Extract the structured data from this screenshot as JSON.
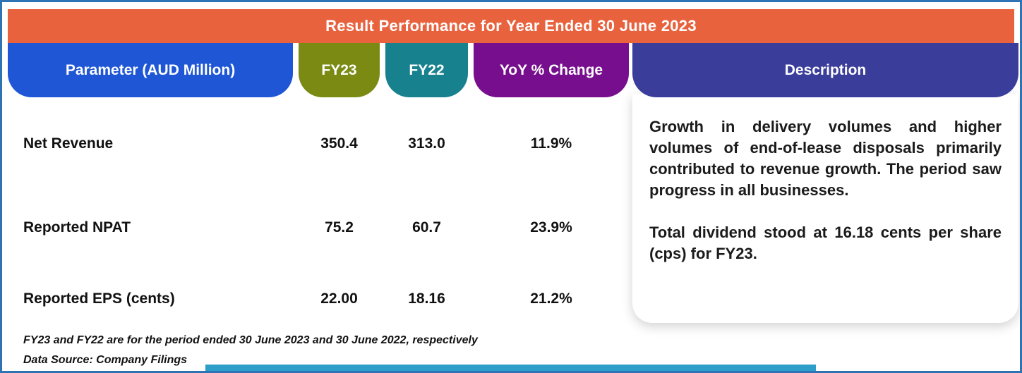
{
  "title": "Result Performance for Year Ended 30 June 2023",
  "table": {
    "headers": {
      "parameter": "Parameter (AUD Million)",
      "fy23": "FY23",
      "fy22": "FY22",
      "yoy": "YoY % Change",
      "description": "Description"
    },
    "rows": [
      {
        "parameter": "Net Revenue",
        "fy23": "350.4",
        "fy22": "313.0",
        "yoy": "11.9%"
      },
      {
        "parameter": "Reported NPAT",
        "fy23": "75.2",
        "fy22": "60.7",
        "yoy": "23.9%"
      },
      {
        "parameter": "Reported EPS (cents)",
        "fy23": "22.00",
        "fy22": "18.16",
        "yoy": "21.2%"
      }
    ]
  },
  "description": {
    "paragraphs": [
      "Growth in delivery volumes and higher volumes of end-of-lease disposals primarily contributed to revenue growth. The period saw progress in all businesses.",
      "Total dividend stood at 16.18 cents per share (cps) for FY23."
    ]
  },
  "footnotes": [
    "FY23 and FY22 are for the period ended 30 June 2023 and 30 June 2022, respectively",
    "Data Source: Company Filings"
  ],
  "colors": {
    "banner_orange": "#e8623e",
    "parameter_blue": "#1e56d6",
    "fy23_olive": "#7a8a12",
    "fy22_teal": "#17818d",
    "yoy_purple": "#770e8e",
    "description_indigo": "#3b3d9b",
    "frame_border_blue": "#2e74b5",
    "bottom_strip_blue": "#2d9dc9"
  },
  "chart_data": {
    "type": "table",
    "title": "Result Performance for Year Ended 30 June 2023",
    "columns": [
      "Parameter (AUD Million)",
      "FY23",
      "FY22",
      "YoY % Change",
      "Description"
    ],
    "rows": [
      [
        "Net Revenue",
        350.4,
        313.0,
        "11.9%"
      ],
      [
        "Reported NPAT",
        75.2,
        60.7,
        "23.9%"
      ],
      [
        "Reported EPS (cents)",
        22.0,
        18.16,
        "21.2%"
      ]
    ],
    "notes": [
      "FY23 and FY22 are for the period ended 30 June 2023 and 30 June 2022, respectively",
      "Data Source: Company Filings"
    ]
  }
}
